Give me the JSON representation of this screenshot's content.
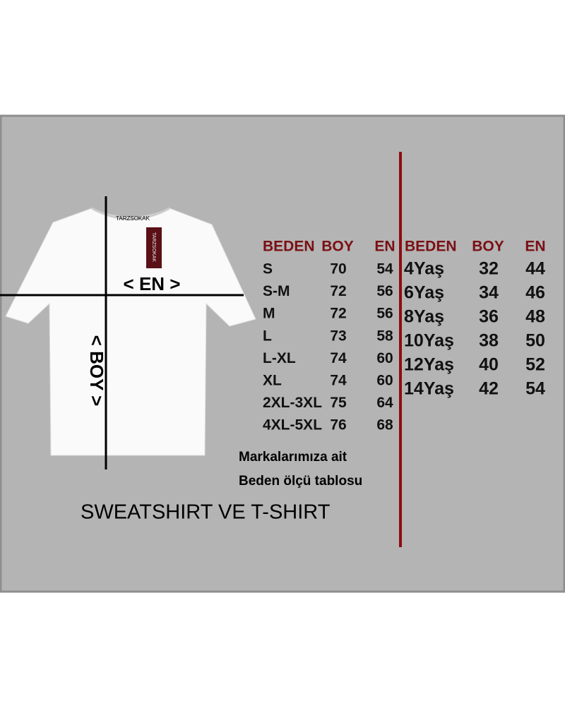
{
  "brand_tag": "TARZSOKAK",
  "shirt_labels": {
    "width": "< EN >",
    "length": "< BOY >"
  },
  "adult_table": {
    "headers": [
      "BEDEN",
      "BOY",
      "EN"
    ],
    "rows": [
      [
        "S",
        70,
        54
      ],
      [
        "S-M",
        72,
        56
      ],
      [
        "M",
        72,
        56
      ],
      [
        "L",
        73,
        58
      ],
      [
        "L-XL",
        74,
        60
      ],
      [
        "XL",
        74,
        60
      ],
      [
        "2XL-3XL",
        75,
        64
      ],
      [
        "4XL-5XL",
        76,
        68
      ]
    ]
  },
  "kids_table": {
    "headers": [
      "BEDEN",
      "BOY",
      "EN"
    ],
    "rows": [
      [
        "4Yaş",
        32,
        44
      ],
      [
        "6Yaş",
        34,
        46
      ],
      [
        "8Yaş",
        36,
        48
      ],
      [
        "10Yaş",
        38,
        50
      ],
      [
        "12Yaş",
        40,
        52
      ],
      [
        "14Yaş",
        42,
        54
      ]
    ]
  },
  "note": [
    "Markalarımıza ait",
    "Beden ölçü tablosu"
  ],
  "footer": "SWEATSHIRT VE T-SHIRT"
}
